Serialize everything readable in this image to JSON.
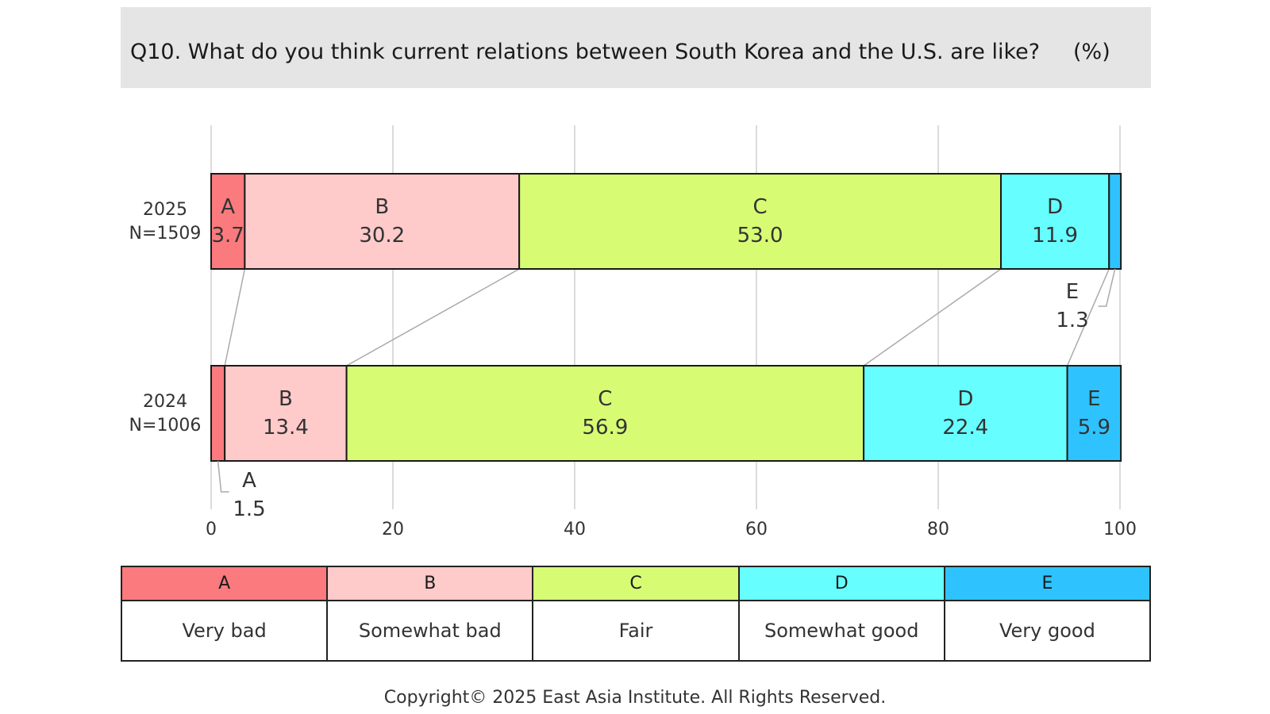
{
  "title": {
    "text": "Q10. What do you think current relations between South Korea and the U.S. are like?",
    "unit": "(%)"
  },
  "colors": {
    "A": "#fa7a7d",
    "B": "#fecaca",
    "C": "#d7fc74",
    "D": "#66feff",
    "E": "#2ec3fe"
  },
  "chart_data": {
    "type": "bar",
    "orientation": "horizontal",
    "stacked": true,
    "xlim": [
      0,
      100
    ],
    "x_ticks": [
      "0",
      "20",
      "40",
      "60",
      "80",
      "100"
    ],
    "grid": true,
    "categories": [
      {
        "year": "2025",
        "n": "N=1509"
      },
      {
        "year": "2024",
        "n": "N=1006"
      }
    ],
    "series": [
      {
        "name": "A",
        "values": [
          3.7,
          1.5
        ],
        "labels": [
          "3.7",
          "1.5"
        ]
      },
      {
        "name": "B",
        "values": [
          30.2,
          13.4
        ],
        "labels": [
          "30.2",
          "13.4"
        ]
      },
      {
        "name": "C",
        "values": [
          53.0,
          56.9
        ],
        "labels": [
          "53.0",
          "56.9"
        ]
      },
      {
        "name": "D",
        "values": [
          11.9,
          22.4
        ],
        "labels": [
          "11.9",
          "22.4"
        ]
      },
      {
        "name": "E",
        "values": [
          1.3,
          5.9
        ],
        "labels": [
          "1.3",
          "5.9"
        ]
      }
    ]
  },
  "legend": [
    {
      "code": "A",
      "label": "Very bad"
    },
    {
      "code": "B",
      "label": "Somewhat bad"
    },
    {
      "code": "C",
      "label": "Fair"
    },
    {
      "code": "D",
      "label": "Somewhat good"
    },
    {
      "code": "E",
      "label": "Very good"
    }
  ],
  "footer": "Copyright© 2025 East Asia Institute. All Rights Reserved."
}
